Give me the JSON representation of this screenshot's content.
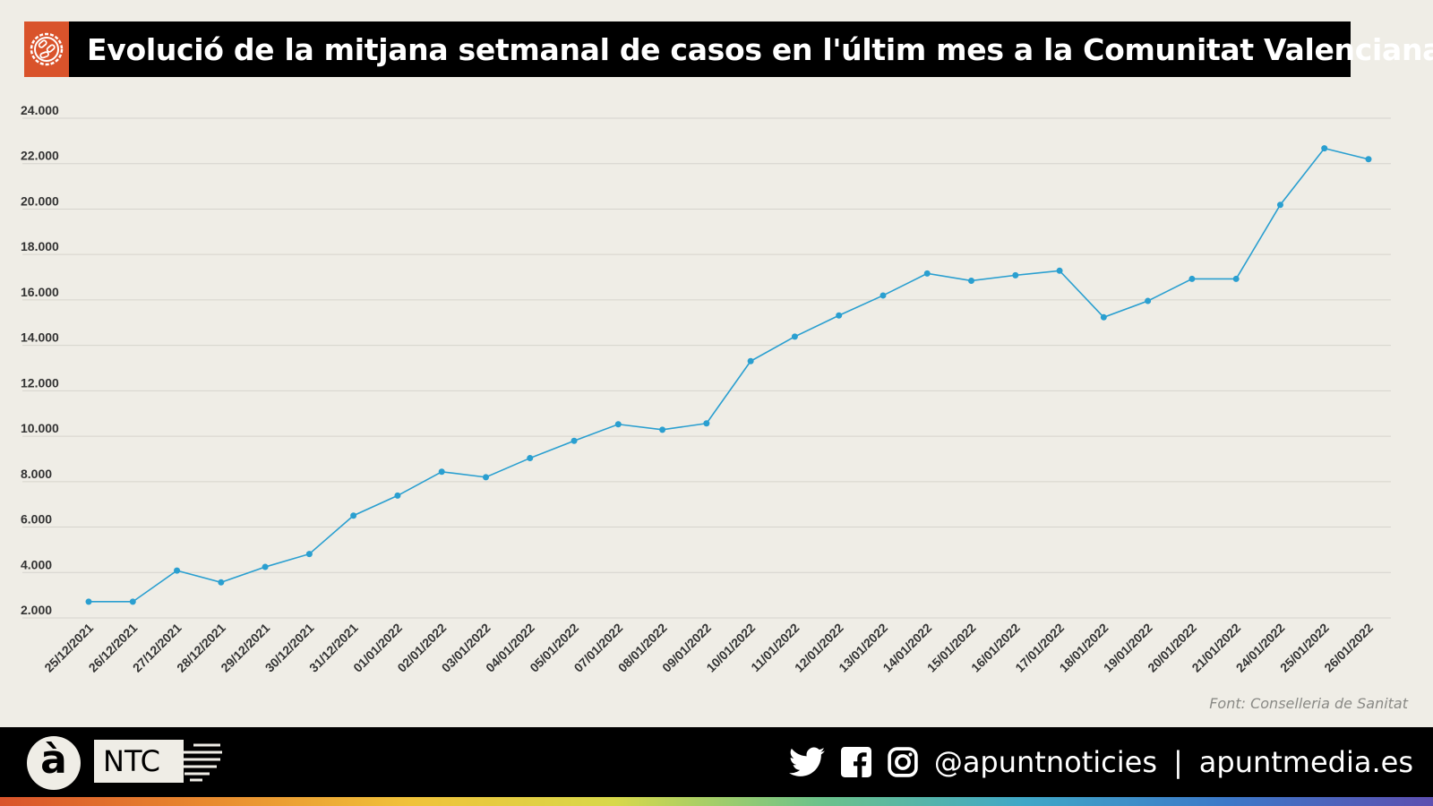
{
  "header": {
    "title": "Evolució de la mitjana setmanal de casos en l'últim mes a la Comunitat Valenciana",
    "icon": "virus-icon",
    "accent": "#d9532b"
  },
  "chart_data": {
    "type": "line",
    "title": "Evolució de la mitjana setmanal de casos en l'últim mes a la Comunitat Valenciana",
    "xlabel": "",
    "ylabel": "",
    "ylim": [
      2000,
      24000
    ],
    "yticks": [
      "2.000",
      "4.000",
      "6.000",
      "8.000",
      "10.000",
      "12.000",
      "14.000",
      "16.000",
      "18.000",
      "20.000",
      "22.000",
      "24.000"
    ],
    "ytick_values": [
      2000,
      4000,
      6000,
      8000,
      10000,
      12000,
      14000,
      16000,
      18000,
      20000,
      22000,
      24000
    ],
    "grid": true,
    "color": "#2a9fd0",
    "categories": [
      "25/12/2021",
      "26/12/2021",
      "27/12/2021",
      "28/12/2021",
      "29/12/2021",
      "30/12/2021",
      "31/12/2021",
      "01/01/2022",
      "02/01/2022",
      "03/01/2022",
      "04/01/2022",
      "05/01/2022",
      "07/01/2022",
      "08/01/2022",
      "09/01/2022",
      "10/01/2022",
      "11/01/2022",
      "12/01/2022",
      "13/01/2022",
      "14/01/2022",
      "15/01/2022",
      "16/01/2022",
      "17/01/2022",
      "18/01/2022",
      "19/01/2022",
      "20/01/2022",
      "21/01/2022",
      "24/01/2022",
      "25/01/2022",
      "26/01/2022"
    ],
    "values": [
      2400,
      2400,
      3770,
      3250,
      3930,
      4500,
      6190,
      7070,
      8120,
      7880,
      8720,
      9480,
      10210,
      9970,
      10250,
      12990,
      14070,
      15000,
      15880,
      16850,
      16530,
      16770,
      16970,
      14920,
      15640,
      16610,
      16610,
      19870,
      22360,
      21880
    ]
  },
  "source": "Font: Conselleria de Sanitat",
  "footer": {
    "logo_letter": "à",
    "brand": "NTC",
    "handle": "@apuntnoticies",
    "separator": "|",
    "website": "apuntmedia.es",
    "icons": [
      "twitter-icon",
      "facebook-icon",
      "instagram-icon"
    ]
  }
}
